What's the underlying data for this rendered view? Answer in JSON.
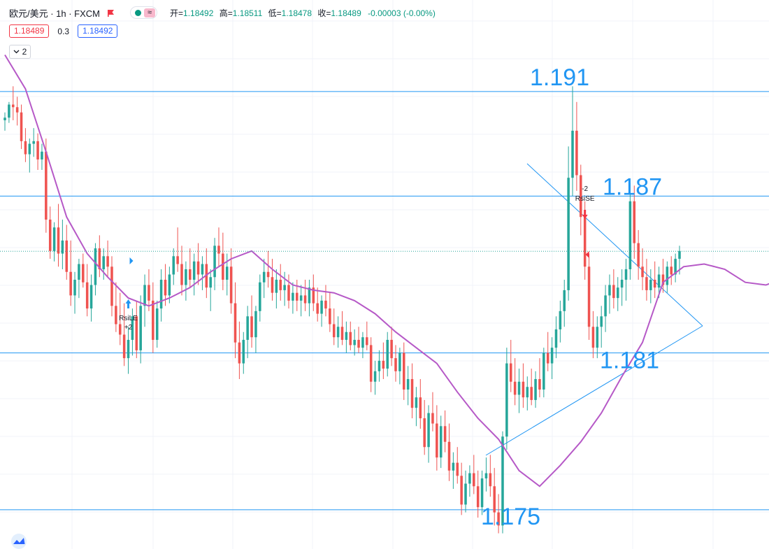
{
  "header": {
    "symbol": "欧元/美元 · 1h · FXCM",
    "open_label": "开=",
    "open": "1.18492",
    "high_label": "高=",
    "high": "1.18511",
    "low_label": "低=",
    "low": "1.18478",
    "close_label": "收=",
    "close": "1.18489",
    "change": "-0.00003 (-0.00%)",
    "flag_icon": "flag-icon",
    "indicator_dot_color": "#089981",
    "indicator_wave_icon": "wave-icon"
  },
  "trade": {
    "sell_price": "1.18489",
    "spread": "0.3",
    "buy_price": "1.18492"
  },
  "legend_toggle": {
    "count": "2",
    "icon": "chevron-down-icon"
  },
  "colors": {
    "up": "#26a69a",
    "down": "#ef5350",
    "ma": "#b659c7",
    "lines": "#2196f3",
    "label_text": "#2196f3",
    "grid": "#f0f3fa"
  },
  "chart_data": {
    "type": "candlestick",
    "instrument": "欧元/美元",
    "timeframe": "1h",
    "source": "FXCM",
    "ylim": [
      1.1735,
      1.1945
    ],
    "grid": true,
    "moving_average": {
      "t": [
        0,
        5,
        10,
        15,
        20,
        25,
        30,
        35,
        40,
        45,
        50,
        55,
        60,
        65,
        70,
        75,
        80,
        85,
        90,
        95,
        100,
        105,
        110,
        115,
        120,
        125,
        130,
        135,
        140,
        145,
        150,
        155,
        160,
        165,
        170,
        175,
        180,
        185,
        190,
        195,
        200
      ],
      "v": [
        1.1924,
        1.1911,
        1.1887,
        1.1862,
        1.1848,
        1.1839,
        1.1831,
        1.1828,
        1.1831,
        1.1835,
        1.1841,
        1.1846,
        1.1849,
        1.1842,
        1.1836,
        1.1834,
        1.1833,
        1.183,
        1.1825,
        1.1818,
        1.1812,
        1.1806,
        1.1795,
        1.1785,
        1.1777,
        1.1765,
        1.1759,
        1.1767,
        1.1776,
        1.1787,
        1.1801,
        1.1814,
        1.1837,
        1.1843,
        1.1844,
        1.1842,
        1.1837,
        1.1836,
        1.1839,
        1.1841,
        1.1845
      ]
    },
    "candles": [
      [
        1.1899,
        1.1902,
        1.1895,
        1.19
      ],
      [
        1.19,
        1.1906,
        1.1898,
        1.1905
      ],
      [
        1.1905,
        1.1912,
        1.1899,
        1.1904
      ],
      [
        1.1904,
        1.1908,
        1.1897,
        1.1902
      ],
      [
        1.1902,
        1.1905,
        1.1888,
        1.1891
      ],
      [
        1.1891,
        1.1896,
        1.1883,
        1.1886
      ],
      [
        1.1886,
        1.1892,
        1.1879,
        1.189
      ],
      [
        1.189,
        1.1896,
        1.1885,
        1.1891
      ],
      [
        1.1891,
        1.1894,
        1.188,
        1.1884
      ],
      [
        1.1884,
        1.189,
        1.188,
        1.1887
      ],
      [
        1.1887,
        1.1892,
        1.1856,
        1.1861
      ],
      [
        1.1861,
        1.1866,
        1.1846,
        1.1849
      ],
      [
        1.1849,
        1.186,
        1.1845,
        1.1858
      ],
      [
        1.1858,
        1.1867,
        1.1843,
        1.1848
      ],
      [
        1.1848,
        1.1861,
        1.1842,
        1.1853
      ],
      [
        1.1853,
        1.1859,
        1.1838,
        1.1841
      ],
      [
        1.1841,
        1.1853,
        1.1828,
        1.1832
      ],
      [
        1.1832,
        1.1841,
        1.1825,
        1.1838
      ],
      [
        1.1838,
        1.1846,
        1.1831,
        1.1844
      ],
      [
        1.1844,
        1.1848,
        1.1835,
        1.1837
      ],
      [
        1.1837,
        1.1844,
        1.1824,
        1.1827
      ],
      [
        1.1827,
        1.184,
        1.1822,
        1.1836
      ],
      [
        1.1836,
        1.1852,
        1.1832,
        1.185
      ],
      [
        1.185,
        1.1855,
        1.1839,
        1.1842
      ],
      [
        1.1842,
        1.185,
        1.1838,
        1.1847
      ],
      [
        1.1847,
        1.1853,
        1.1839,
        1.1843
      ],
      [
        1.1843,
        1.1847,
        1.1824,
        1.1828
      ],
      [
        1.1828,
        1.1837,
        1.1818,
        1.1821
      ],
      [
        1.1821,
        1.1833,
        1.1813,
        1.1817
      ],
      [
        1.1817,
        1.1829,
        1.1805,
        1.1808
      ],
      [
        1.1808,
        1.182,
        1.1802,
        1.1815
      ],
      [
        1.1815,
        1.1827,
        1.1809,
        1.1824
      ],
      [
        1.1824,
        1.183,
        1.1808,
        1.1811
      ],
      [
        1.1811,
        1.1832,
        1.1806,
        1.1828
      ],
      [
        1.1828,
        1.184,
        1.182,
        1.1836
      ],
      [
        1.1836,
        1.1842,
        1.1826,
        1.183
      ],
      [
        1.183,
        1.1837,
        1.181,
        1.1815
      ],
      [
        1.1815,
        1.183,
        1.1812,
        1.1827
      ],
      [
        1.1827,
        1.1842,
        1.1822,
        1.1838
      ],
      [
        1.1838,
        1.1844,
        1.1828,
        1.1832
      ],
      [
        1.1832,
        1.1843,
        1.1829,
        1.184
      ],
      [
        1.184,
        1.185,
        1.1836,
        1.1847
      ],
      [
        1.1847,
        1.1858,
        1.1841,
        1.1844
      ],
      [
        1.1844,
        1.1851,
        1.1832,
        1.1836
      ],
      [
        1.1836,
        1.1845,
        1.183,
        1.1842
      ],
      [
        1.1842,
        1.185,
        1.1835,
        1.1838
      ],
      [
        1.1838,
        1.1848,
        1.1832,
        1.1845
      ],
      [
        1.1845,
        1.1852,
        1.1836,
        1.184
      ],
      [
        1.184,
        1.1847,
        1.1834,
        1.1844
      ],
      [
        1.1844,
        1.185,
        1.1831,
        1.1835
      ],
      [
        1.1835,
        1.1842,
        1.1826,
        1.1839
      ],
      [
        1.1839,
        1.1854,
        1.1834,
        1.1851
      ],
      [
        1.1851,
        1.1858,
        1.1843,
        1.1848
      ],
      [
        1.1848,
        1.1856,
        1.1834,
        1.1838
      ],
      [
        1.1838,
        1.1848,
        1.1832,
        1.1843
      ],
      [
        1.1843,
        1.185,
        1.1825,
        1.1829
      ],
      [
        1.1829,
        1.1837,
        1.1808,
        1.1814
      ],
      [
        1.1814,
        1.1822,
        1.18,
        1.1806
      ],
      [
        1.1806,
        1.1818,
        1.1802,
        1.1815
      ],
      [
        1.1815,
        1.1828,
        1.1808,
        1.1824
      ],
      [
        1.1824,
        1.1832,
        1.1812,
        1.1816
      ],
      [
        1.1816,
        1.1828,
        1.181,
        1.1826
      ],
      [
        1.1826,
        1.184,
        1.1822,
        1.1837
      ],
      [
        1.1837,
        1.1846,
        1.1831,
        1.1841
      ],
      [
        1.1841,
        1.1849,
        1.1835,
        1.1839
      ],
      [
        1.1839,
        1.1846,
        1.183,
        1.1833
      ],
      [
        1.1833,
        1.1842,
        1.1827,
        1.1838
      ],
      [
        1.1838,
        1.1844,
        1.183,
        1.1834
      ],
      [
        1.1834,
        1.1841,
        1.1828,
        1.1836
      ],
      [
        1.1836,
        1.184,
        1.1827,
        1.183
      ],
      [
        1.183,
        1.1837,
        1.1825,
        1.1833
      ],
      [
        1.1833,
        1.1838,
        1.1826,
        1.183
      ],
      [
        1.183,
        1.1836,
        1.1824,
        1.1832
      ],
      [
        1.1832,
        1.1838,
        1.1826,
        1.1829
      ],
      [
        1.1829,
        1.1838,
        1.1824,
        1.1835
      ],
      [
        1.1835,
        1.184,
        1.1826,
        1.1829
      ],
      [
        1.1829,
        1.1835,
        1.1822,
        1.1825
      ],
      [
        1.1825,
        1.1832,
        1.182,
        1.183
      ],
      [
        1.183,
        1.1836,
        1.1824,
        1.1827
      ],
      [
        1.1827,
        1.1833,
        1.1818,
        1.1821
      ],
      [
        1.1821,
        1.1827,
        1.1813,
        1.1816
      ],
      [
        1.1816,
        1.1824,
        1.1812,
        1.182
      ],
      [
        1.182,
        1.1826,
        1.1813,
        1.1815
      ],
      [
        1.1815,
        1.1822,
        1.181,
        1.1818
      ],
      [
        1.1818,
        1.1822,
        1.1811,
        1.1813
      ],
      [
        1.1813,
        1.1819,
        1.1809,
        1.1815
      ],
      [
        1.1815,
        1.182,
        1.181,
        1.1812
      ],
      [
        1.1812,
        1.1818,
        1.1808,
        1.1816
      ],
      [
        1.1816,
        1.1822,
        1.1811,
        1.1813
      ],
      [
        1.1813,
        1.1816,
        1.1795,
        1.1799
      ],
      [
        1.1799,
        1.1807,
        1.1794,
        1.1803
      ],
      [
        1.1803,
        1.1811,
        1.1799,
        1.1807
      ],
      [
        1.1807,
        1.1814,
        1.18,
        1.1804
      ],
      [
        1.1804,
        1.1818,
        1.1801,
        1.1815
      ],
      [
        1.1815,
        1.182,
        1.1805,
        1.1808
      ],
      [
        1.1808,
        1.1813,
        1.1799,
        1.1803
      ],
      [
        1.1803,
        1.1812,
        1.1798,
        1.181
      ],
      [
        1.181,
        1.1814,
        1.1792,
        1.1796
      ],
      [
        1.1796,
        1.1805,
        1.179,
        1.18
      ],
      [
        1.18,
        1.1806,
        1.1785,
        1.1789
      ],
      [
        1.1789,
        1.1797,
        1.1782,
        1.1793
      ],
      [
        1.1793,
        1.18,
        1.1781,
        1.1785
      ],
      [
        1.1785,
        1.1792,
        1.1771,
        1.1774
      ],
      [
        1.1774,
        1.179,
        1.1768,
        1.1787
      ],
      [
        1.1787,
        1.1795,
        1.178,
        1.1783
      ],
      [
        1.1783,
        1.179,
        1.1765,
        1.177
      ],
      [
        1.177,
        1.1786,
        1.1766,
        1.1782
      ],
      [
        1.1782,
        1.1788,
        1.1772,
        1.1776
      ],
      [
        1.1776,
        1.1783,
        1.1761,
        1.1765
      ],
      [
        1.1765,
        1.1772,
        1.1758,
        1.1768
      ],
      [
        1.1768,
        1.1774,
        1.176,
        1.1763
      ],
      [
        1.1763,
        1.1768,
        1.1748,
        1.1752
      ],
      [
        1.1752,
        1.1765,
        1.1749,
        1.176
      ],
      [
        1.176,
        1.1767,
        1.1755,
        1.1764
      ],
      [
        1.1764,
        1.1771,
        1.1756,
        1.1759
      ],
      [
        1.1759,
        1.1765,
        1.1747,
        1.1751
      ],
      [
        1.1751,
        1.1765,
        1.1748,
        1.1762
      ],
      [
        1.1762,
        1.177,
        1.1757,
        1.1764
      ],
      [
        1.1764,
        1.1771,
        1.1755,
        1.1759
      ],
      [
        1.1759,
        1.1766,
        1.1744,
        1.1749
      ],
      [
        1.1749,
        1.1756,
        1.1741,
        1.1744
      ],
      [
        1.1744,
        1.178,
        1.1741,
        1.1778
      ],
      [
        1.1778,
        1.1812,
        1.1773,
        1.1806
      ],
      [
        1.1806,
        1.1815,
        1.1795,
        1.1799
      ],
      [
        1.1799,
        1.1808,
        1.179,
        1.1794
      ],
      [
        1.1794,
        1.1804,
        1.1787,
        1.1799
      ],
      [
        1.1799,
        1.1806,
        1.1789,
        1.1793
      ],
      [
        1.1793,
        1.1801,
        1.1788,
        1.1797
      ],
      [
        1.1797,
        1.1804,
        1.179,
        1.1792
      ],
      [
        1.1792,
        1.1803,
        1.1789,
        1.18
      ],
      [
        1.18,
        1.1808,
        1.1793,
        1.1796
      ],
      [
        1.1796,
        1.1812,
        1.1793,
        1.181
      ],
      [
        1.181,
        1.1818,
        1.1803,
        1.1806
      ],
      [
        1.1806,
        1.1816,
        1.18,
        1.1812
      ],
      [
        1.1812,
        1.1824,
        1.1808,
        1.1819
      ],
      [
        1.1819,
        1.183,
        1.1814,
        1.1826
      ],
      [
        1.1826,
        1.1838,
        1.182,
        1.1834
      ],
      [
        1.1834,
        1.1889,
        1.183,
        1.1877
      ],
      [
        1.1877,
        1.1912,
        1.187,
        1.1895
      ],
      [
        1.1895,
        1.1906,
        1.1872,
        1.1878
      ],
      [
        1.1878,
        1.1882,
        1.1855,
        1.1862
      ],
      [
        1.1862,
        1.1868,
        1.1838,
        1.1843
      ],
      [
        1.1843,
        1.1848,
        1.1815,
        1.182
      ],
      [
        1.182,
        1.1826,
        1.1808,
        1.1812
      ],
      [
        1.1812,
        1.1824,
        1.1808,
        1.182
      ],
      [
        1.182,
        1.1828,
        1.1812,
        1.1824
      ],
      [
        1.1824,
        1.1836,
        1.1818,
        1.1832
      ],
      [
        1.1832,
        1.184,
        1.1825,
        1.1836
      ],
      [
        1.1836,
        1.1842,
        1.1827,
        1.1831
      ],
      [
        1.1831,
        1.1839,
        1.1826,
        1.1835
      ],
      [
        1.1835,
        1.1842,
        1.1828,
        1.1838
      ],
      [
        1.1838,
        1.1846,
        1.183,
        1.1842
      ],
      [
        1.1842,
        1.1875,
        1.1838,
        1.1868
      ],
      [
        1.1868,
        1.1874,
        1.1846,
        1.1852
      ],
      [
        1.1852,
        1.1857,
        1.1838,
        1.1843
      ],
      [
        1.1843,
        1.185,
        1.1834,
        1.1839
      ],
      [
        1.1839,
        1.1846,
        1.183,
        1.1834
      ],
      [
        1.1834,
        1.1842,
        1.1829,
        1.1838
      ],
      [
        1.1838,
        1.1845,
        1.1831,
        1.1835
      ],
      [
        1.1835,
        1.1843,
        1.1831,
        1.184
      ],
      [
        1.184,
        1.1846,
        1.1833,
        1.1836
      ],
      [
        1.1836,
        1.1845,
        1.1833,
        1.1843
      ],
      [
        1.1843,
        1.1847,
        1.1836,
        1.184
      ],
      [
        1.184,
        1.1848,
        1.1837,
        1.1846
      ],
      [
        1.1846,
        1.1851,
        1.184,
        1.1849
      ]
    ],
    "levels": [
      {
        "value": 1.191,
        "label": "1.191"
      },
      {
        "value": 1.187,
        "label": "1.187"
      },
      {
        "value": 1.181,
        "label": "1.181"
      },
      {
        "value": 1.175,
        "label": "1.175"
      }
    ],
    "current_price": 1.18489,
    "signals": [
      {
        "name": "RsiLE",
        "qty": "+2",
        "direction": "up"
      },
      {
        "name": "RsiSE",
        "qty": "-2",
        "direction": "down"
      }
    ]
  }
}
